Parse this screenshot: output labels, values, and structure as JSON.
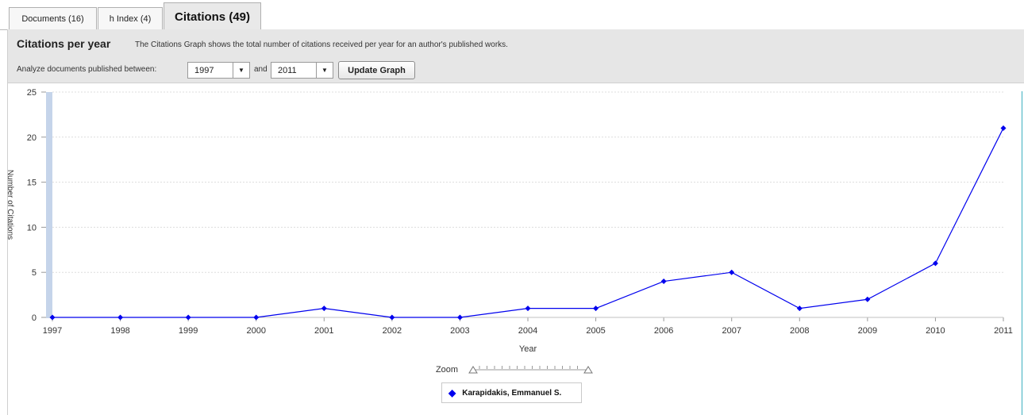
{
  "tabs": [
    {
      "label": "Documents (16)"
    },
    {
      "label": "h Index (4)"
    },
    {
      "label": "Citations (49)",
      "active": true
    }
  ],
  "panel": {
    "title": "Citations per year",
    "description": "The Citations Graph shows the total number of citations received per year for an author's published works.",
    "analyze_label": "Analyze documents published between:",
    "from_year": "1997",
    "and_label": "and",
    "to_year": "2011",
    "update_button": "Update Graph"
  },
  "zoom": {
    "label": "Zoom"
  },
  "colors": {
    "series": "#0000ee",
    "scrollbar": "#c5d4ea"
  },
  "chart_data": {
    "type": "line",
    "x": [
      1997,
      1998,
      1999,
      2000,
      2001,
      2002,
      2003,
      2004,
      2005,
      2006,
      2007,
      2008,
      2009,
      2010,
      2011
    ],
    "series": [
      {
        "name": "Karapidakis, Emmanuel S.",
        "values": [
          0,
          0,
          0,
          0,
          1,
          0,
          0,
          1,
          1,
          4,
          5,
          1,
          2,
          6,
          21
        ]
      }
    ],
    "xlabel": "Year",
    "ylabel": "Number of Citations",
    "ylim": [
      0,
      25
    ],
    "yticks": [
      0,
      5,
      10,
      15,
      20,
      25
    ],
    "legend_position": "bottom-center",
    "grid": "horizontal dotted"
  }
}
